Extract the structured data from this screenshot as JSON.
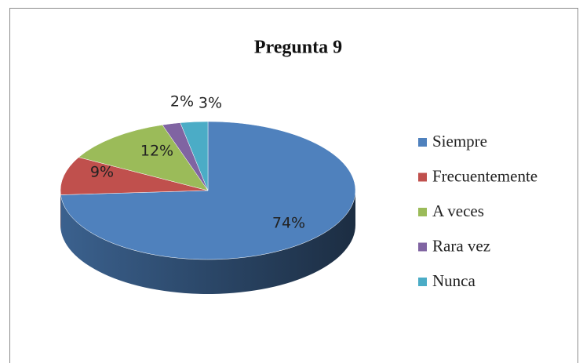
{
  "chart_data": {
    "type": "pie",
    "title": "Pregunta 9",
    "categories": [
      "Siempre",
      "Frecuentemente",
      "A veces",
      "Rara vez",
      "Nunca"
    ],
    "values": [
      74,
      9,
      12,
      2,
      3
    ],
    "value_labels": [
      "74%",
      "9%",
      "12%",
      "2%",
      "3%"
    ],
    "colors": [
      "#4f81bd",
      "#c0504d",
      "#9bbb59",
      "#8064a2",
      "#4bacc6"
    ],
    "legend": "right"
  }
}
